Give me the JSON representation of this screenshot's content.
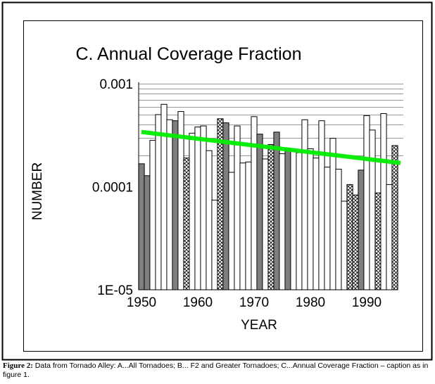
{
  "caption": {
    "label": "Figure 2:",
    "text": " Data from Tornado Alley: A...All Tornadoes; B... F2 and Greater Tornadoes; C...Annual Coverage Fraction – caption as in figure 1."
  },
  "chart_data": {
    "type": "bar",
    "title": "C. Annual Coverage Fraction",
    "xlabel": "YEAR",
    "ylabel": "NUMBER",
    "yscale": "log",
    "ylim": [
      1e-05,
      0.001
    ],
    "xlim": [
      1949.5,
      1996.5
    ],
    "ytick_labels": [
      "0.001",
      "0.0001",
      "1E-05"
    ],
    "yticks": [
      0.001,
      0.0001,
      1e-05
    ],
    "xticks": [
      1950,
      1960,
      1970,
      1980,
      1990
    ],
    "xtick_labels": [
      "1950",
      "1960",
      "1970",
      "1980",
      "1990"
    ],
    "grid": "horizontal, upper decade",
    "colors": {
      "dark": "#7f7f7f",
      "light": "#ffffff",
      "hatched": "#ffffff",
      "trend": "#00ee00"
    },
    "years": [
      1950,
      1951,
      1952,
      1953,
      1954,
      1955,
      1956,
      1957,
      1958,
      1959,
      1960,
      1961,
      1962,
      1963,
      1964,
      1965,
      1966,
      1967,
      1968,
      1969,
      1970,
      1971,
      1972,
      1973,
      1974,
      1975,
      1976,
      1977,
      1978,
      1979,
      1980,
      1981,
      1982,
      1983,
      1984,
      1985,
      1986,
      1987,
      1988,
      1989,
      1990,
      1991,
      1992,
      1993,
      1994,
      1995
    ],
    "values": [
      0.000167,
      0.000128,
      0.000282,
      0.000501,
      0.000631,
      0.000447,
      0.000437,
      0.000537,
      0.00019,
      0.000331,
      0.00038,
      0.000389,
      0.000224,
      7.41e-05,
      0.000457,
      0.000417,
      0.000138,
      0.000389,
      0.00017,
      0.000174,
      0.000479,
      0.000324,
      0.000186,
      0.000257,
      0.000339,
      0.000209,
      0.000234,
      0.000224,
      0.000214,
      0.000447,
      0.000234,
      0.00019,
      0.000437,
      0.000155,
      0.000295,
      0.000148,
      7.24e-05,
      0.000105,
      8.32e-05,
      0.000145,
      0.00049,
      0.000355,
      8.71e-05,
      0.000513,
      0.000105,
      0.000251
    ],
    "styles": [
      "dark",
      "dark",
      "light",
      "light",
      "light",
      "light",
      "dark",
      "light",
      "hatched",
      "light",
      "light",
      "light",
      "light",
      "light",
      "hatched",
      "dark",
      "light",
      "light",
      "light",
      "light",
      "light",
      "dark",
      "light",
      "hatched",
      "dark",
      "light",
      "dark",
      "light",
      "light",
      "light",
      "light",
      "light",
      "light",
      "light",
      "light",
      "light",
      "light",
      "hatched",
      "hatched",
      "dark",
      "light",
      "light",
      "hatched",
      "light",
      "light",
      "hatched"
    ],
    "trend": {
      "x": [
        1950,
        1996
      ],
      "y": [
        0.00034,
        0.00017
      ]
    }
  }
}
